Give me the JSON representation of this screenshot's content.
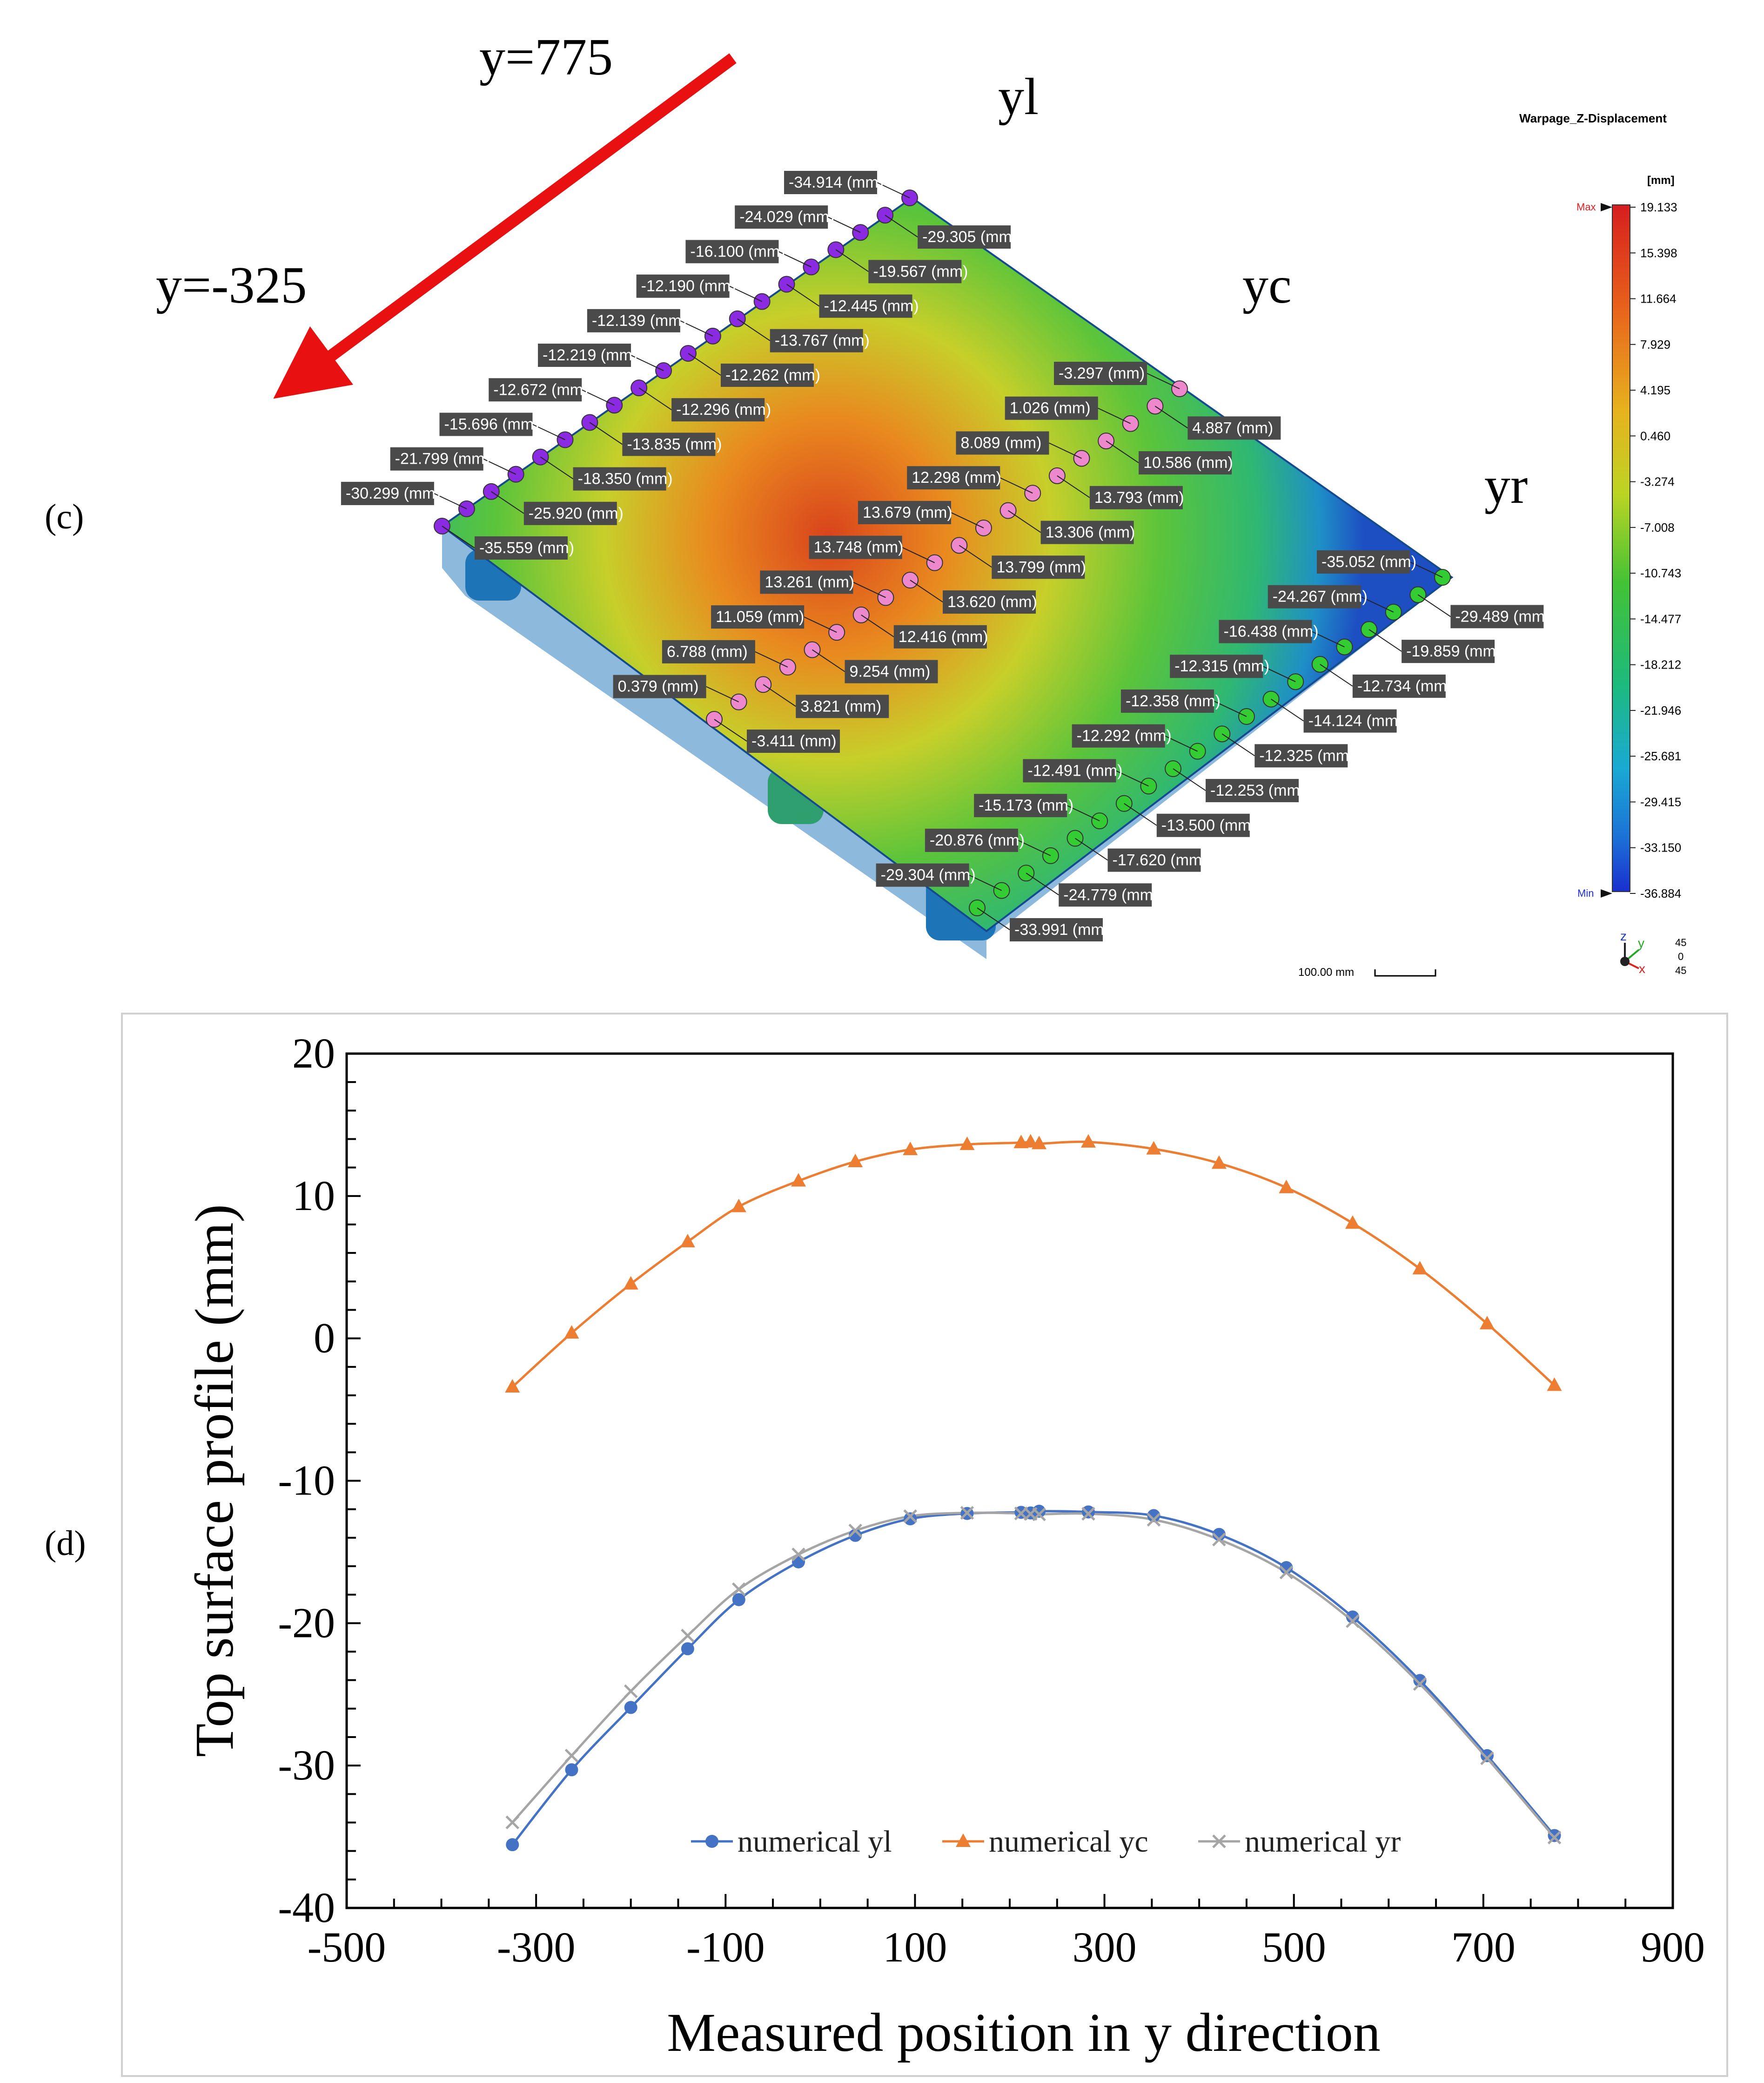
{
  "panel_labels": {
    "c": "(c)",
    "d": "(d)"
  },
  "simulation": {
    "title": "Warpage_Z-Displacement",
    "unit": "[mm]",
    "arrow_start_label": "y=775",
    "arrow_end_label": "y=-325",
    "row_labels": {
      "left": "yl",
      "center": "yc",
      "right": "yr"
    },
    "colorbar": {
      "max_label": "Max",
      "min_label": "Min",
      "ticks": [
        "19.133",
        "15.398",
        "11.664",
        "7.929",
        "4.195",
        "0.460",
        "-3.274",
        "-7.008",
        "-10.743",
        "-14.477",
        "-18.212",
        "-21.946",
        "-25.681",
        "-29.415",
        "-33.150",
        "-36.884"
      ]
    },
    "callouts_yl": [
      "-34.914 (mm)",
      "-29.305 (mm)",
      "-24.029 (mm)",
      "-19.567 (mm)",
      "-16.100 (mm)",
      "-12.445 (mm)",
      "-12.190 (mm)",
      "-13.767 (mm)",
      "-12.139 (mm)",
      "-12.262 (mm)",
      "-12.219 (mm)",
      "-12.296 (mm)",
      "-12.672 (mm)",
      "-13.835 (mm)",
      "-15.696 (mm)",
      "-18.350 (mm)",
      "-21.799 (mm)",
      "-25.920 (mm)",
      "-30.299 (mm)",
      "-35.559 (mm)"
    ],
    "callouts_yc": [
      "-3.297 (mm)",
      "4.887 (mm)",
      "1.026 (mm)",
      "10.586 (mm)",
      "8.089 (mm)",
      "13.793 (mm)",
      "12.298 (mm)",
      "13.306 (mm)",
      "13.679 (mm)",
      "13.799 (mm)",
      "13.748 (mm)",
      "13.620 (mm)",
      "13.261 (mm)",
      "12.416 (mm)",
      "11.059 (mm)",
      "9.254 (mm)",
      "6.788 (mm)",
      "3.821 (mm)",
      "0.379 (mm)",
      "-3.411 (mm)"
    ],
    "callouts_yr": [
      "-35.052 (mm)",
      "-29.489 (mm)",
      "-24.267 (mm)",
      "-19.859 (mm)",
      "-16.438 (mm)",
      "-12.734 (mm)",
      "-12.315 (mm)",
      "-14.124 (mm)",
      "-12.358 (mm)",
      "-12.325 (mm)",
      "-12.292 (mm)",
      "-12.253 (mm)",
      "-12.491 (mm)",
      "-13.500 (mm)",
      "-15.173 (mm)",
      "-17.620 (mm)",
      "-20.876 (mm)",
      "-24.779 (mm)",
      "-29.304 (mm)",
      "-33.991 (mm)"
    ],
    "scale_bar": "100.00 mm",
    "triad": {
      "z": "z",
      "y": "y",
      "x": "x",
      "angles": [
        "45",
        "0",
        "45"
      ]
    }
  },
  "chart_data": {
    "type": "line",
    "xlabel": "Measured position in y direction",
    "ylabel": "Top surface profile (mm)",
    "xlim": [
      -500,
      900
    ],
    "ylim": [
      -40,
      20
    ],
    "xticks": [
      -500,
      -300,
      -100,
      100,
      300,
      500,
      700,
      900
    ],
    "yticks": [
      20,
      10,
      0,
      -10,
      -20,
      -30,
      -40
    ],
    "grid": false,
    "legend_position": "bottom-center",
    "series": [
      {
        "name": "numerical yl",
        "color": "#4472c4",
        "marker": "circle",
        "x": [
          -325,
          -262.5,
          -200,
          -140,
          -86,
          -23,
          37,
          95,
          155,
          212,
          222,
          231,
          283,
          352,
          421,
          492,
          562,
          633,
          704,
          775
        ],
        "y": [
          -35.559,
          -30.299,
          -25.92,
          -21.799,
          -18.35,
          -15.696,
          -13.835,
          -12.672,
          -12.296,
          -12.219,
          -12.262,
          -12.139,
          -12.19,
          -12.445,
          -13.767,
          -16.1,
          -19.567,
          -24.029,
          -29.305,
          -34.914
        ]
      },
      {
        "name": "numerical yc",
        "color": "#ed7d31",
        "marker": "triangle",
        "x": [
          -325,
          -262.5,
          -200,
          -140,
          -86,
          -23,
          37,
          95,
          155,
          212,
          222,
          231,
          283,
          352,
          421,
          492,
          562,
          633,
          704,
          775
        ],
        "y": [
          -3.411,
          0.379,
          3.821,
          6.788,
          9.254,
          11.059,
          12.416,
          13.261,
          13.62,
          13.748,
          13.799,
          13.679,
          13.793,
          13.306,
          12.298,
          10.586,
          8.089,
          4.887,
          1.026,
          -3.297
        ]
      },
      {
        "name": "numerical yr",
        "color": "#a5a5a5",
        "marker": "x",
        "x": [
          -325,
          -262.5,
          -200,
          -140,
          -86,
          -23,
          37,
          95,
          155,
          212,
          222,
          231,
          283,
          352,
          421,
          492,
          562,
          633,
          704,
          775
        ],
        "y": [
          -33.991,
          -29.304,
          -24.779,
          -20.876,
          -17.62,
          -15.173,
          -13.5,
          -12.491,
          -12.253,
          -12.292,
          -12.325,
          -12.358,
          -12.315,
          -12.734,
          -14.124,
          -16.438,
          -19.859,
          -24.267,
          -29.489,
          -35.052
        ]
      }
    ]
  }
}
